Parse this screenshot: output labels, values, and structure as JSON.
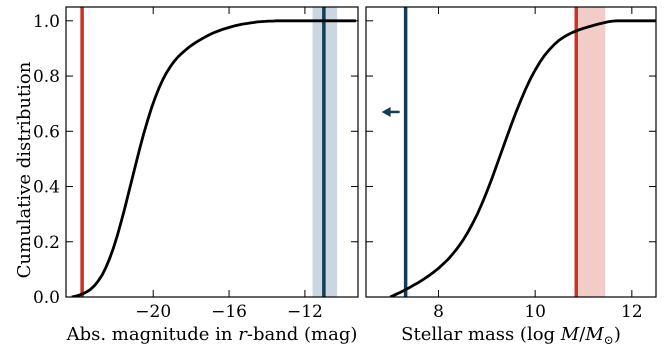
{
  "chart_data": {
    "ylabel": "Cumulative distribution",
    "colors": {
      "curve": "#000000",
      "red_line": "#cc3322",
      "red_band": "#f2cdc7",
      "blue_line": "#143d55",
      "blue_band": "#cad7e0"
    },
    "panels": [
      {
        "type": "line",
        "xlabel": "Abs. magnitude in r-band (mag)",
        "xlabel_parts": [
          "Abs. magnitude in ",
          "r",
          "-band (mag)"
        ],
        "xlim": [
          -24.6,
          -9.2
        ],
        "ylim": [
          0,
          1.05
        ],
        "xticks": [
          -20,
          -16,
          -12
        ],
        "xtick_labels": [
          "−20",
          "−16",
          "−12"
        ],
        "yticks": [
          0.0,
          0.2,
          0.4,
          0.6,
          0.8,
          1.0
        ],
        "ytick_labels": [
          "0.0",
          "0.2",
          "0.4",
          "0.6",
          "0.8",
          "1.0"
        ],
        "series": [
          {
            "x": [
              -24.3,
              -24.1,
              -23.9,
              -23.7,
              -23.5,
              -23.3,
              -23.1,
              -22.9,
              -22.7,
              -22.5,
              -22.3,
              -22.1,
              -21.9,
              -21.7,
              -21.5,
              -21.3,
              -21.1,
              -20.9,
              -20.7,
              -20.5,
              -20.3,
              -20.1,
              -19.9,
              -19.7,
              -19.5,
              -19.3,
              -19.1,
              -18.9,
              -18.7,
              -18.5,
              -18.3,
              -18.1,
              -17.9,
              -17.7,
              -17.5,
              -17.3,
              -17.1,
              -16.9,
              -16.7,
              -16.5,
              -16.3,
              -16.1,
              -15.9,
              -15.7,
              -15.5,
              -15.3,
              -15.1,
              -14.9,
              -14.7,
              -14.5,
              -14.3,
              -14.1,
              -13.9,
              -13.7,
              -13.5,
              -13.3,
              -13.1,
              -12.9,
              -12.7,
              -12.5,
              -12.3,
              -12.1,
              -11.9,
              -11.7,
              -11.5,
              -11.3,
              -11.1,
              -10.9,
              -10.7,
              -10.5,
              -10.3,
              -10.1,
              -9.9,
              -9.7,
              -9.5,
              -9.3
            ],
            "y": [
              0.0,
              0.003,
              0.007,
              0.012,
              0.019,
              0.028,
              0.041,
              0.058,
              0.079,
              0.106,
              0.139,
              0.177,
              0.221,
              0.27,
              0.322,
              0.377,
              0.432,
              0.487,
              0.54,
              0.591,
              0.638,
              0.682,
              0.721,
              0.756,
              0.786,
              0.812,
              0.834,
              0.853,
              0.869,
              0.882,
              0.894,
              0.905,
              0.915,
              0.924,
              0.932,
              0.94,
              0.947,
              0.954,
              0.96,
              0.965,
              0.97,
              0.974,
              0.978,
              0.982,
              0.985,
              0.988,
              0.99,
              0.992,
              0.994,
              0.996,
              0.997,
              0.998,
              0.999,
              0.999,
              1.0,
              1.0,
              1.0,
              1.0,
              1.0,
              1.0,
              1.0,
              1.0,
              1.0,
              1.0,
              1.0,
              1.0,
              1.0,
              1.0,
              1.0,
              1.0,
              1.0,
              1.0,
              1.0,
              1.0,
              1.0,
              1.0
            ]
          }
        ],
        "vlines": [
          {
            "x": -23.75,
            "color": "red"
          },
          {
            "x": -11.0,
            "color": "blue",
            "band": [
              -11.6,
              -10.3
            ]
          }
        ]
      },
      {
        "type": "line",
        "xlabel": "Stellar mass (log M/M⊙)",
        "xlabel_parts": [
          "Stellar mass (log ",
          "M",
          "/",
          "M",
          "⊙",
          ")"
        ],
        "xlim": [
          6.5,
          12.5
        ],
        "ylim": [
          0,
          1.05
        ],
        "xticks": [
          8,
          10,
          12
        ],
        "xtick_labels": [
          "8",
          "10",
          "12"
        ],
        "series": [
          {
            "x": [
              7.0,
              7.1,
              7.2,
              7.3,
              7.4,
              7.5,
              7.6,
              7.7,
              7.8,
              7.9,
              8.0,
              8.1,
              8.2,
              8.3,
              8.4,
              8.5,
              8.6,
              8.7,
              8.8,
              8.9,
              9.0,
              9.1,
              9.2,
              9.3,
              9.4,
              9.5,
              9.6,
              9.7,
              9.8,
              9.9,
              10.0,
              10.1,
              10.2,
              10.3,
              10.4,
              10.5,
              10.6,
              10.7,
              10.8,
              10.9,
              11.0,
              11.1,
              11.2,
              11.3,
              11.4,
              11.5,
              11.6,
              11.7,
              11.8,
              11.9,
              12.0,
              12.1,
              12.2,
              12.3,
              12.4,
              12.5
            ],
            "y": [
              0.0,
              0.008,
              0.016,
              0.025,
              0.034,
              0.044,
              0.054,
              0.065,
              0.077,
              0.09,
              0.104,
              0.12,
              0.137,
              0.157,
              0.179,
              0.204,
              0.232,
              0.264,
              0.299,
              0.338,
              0.381,
              0.427,
              0.475,
              0.524,
              0.573,
              0.621,
              0.667,
              0.711,
              0.752,
              0.789,
              0.822,
              0.851,
              0.876,
              0.897,
              0.915,
              0.93,
              0.942,
              0.952,
              0.96,
              0.967,
              0.973,
              0.978,
              0.983,
              0.988,
              0.992,
              0.996,
              0.999,
              1.0,
              1.0,
              1.0,
              1.0,
              1.0,
              1.0,
              1.0,
              1.0,
              1.0
            ]
          }
        ],
        "vlines": [
          {
            "x": 7.32,
            "color": "blue",
            "arrow": "left"
          },
          {
            "x": 10.85,
            "color": "red",
            "band": [
              10.85,
              11.45
            ]
          }
        ]
      }
    ]
  }
}
